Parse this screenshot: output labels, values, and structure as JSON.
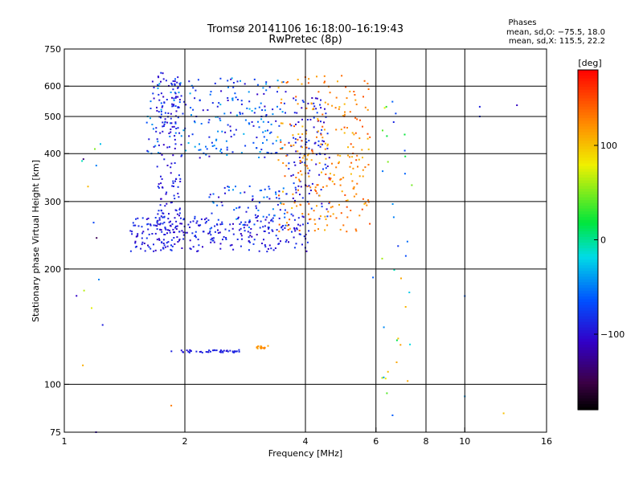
{
  "header": {
    "title": "Tromsø 20141106 16:18:00–16:19:43",
    "subtitle": "RwPretec (8p)"
  },
  "info": {
    "heading": "Phases",
    "line1": "mean, sd,O: −75.5, 18.0",
    "line2": "mean, sd,X: 115.5, 22.2"
  },
  "colorbar": {
    "label": "[deg]",
    "range": [
      -180,
      180
    ],
    "ticks": [
      {
        "value": 100,
        "label": "100"
      },
      {
        "value": 0,
        "label": "0"
      },
      {
        "value": -100,
        "label": "−100"
      }
    ]
  },
  "chart_data": {
    "type": "scatter",
    "xlabel": "Frequency [MHz]",
    "ylabel": "Stationary phase Virtual Height [km]",
    "xscale": "log",
    "yscale": "log",
    "xlim": [
      1,
      16
    ],
    "ylim": [
      75,
      750
    ],
    "xticks": [
      {
        "value": 1,
        "label": "1"
      },
      {
        "value": 2,
        "label": "2"
      },
      {
        "value": 4,
        "label": "4"
      },
      {
        "value": 6,
        "label": "6"
      },
      {
        "value": 8,
        "label": "8"
      },
      {
        "value": 10,
        "label": "10"
      },
      {
        "value": 16,
        "label": "16"
      }
    ],
    "yticks": [
      {
        "value": 75,
        "label": "75"
      },
      {
        "value": 100,
        "label": "100"
      },
      {
        "value": 200,
        "label": "200"
      },
      {
        "value": 300,
        "label": "300"
      },
      {
        "value": 400,
        "label": "400"
      },
      {
        "value": 500,
        "label": "500"
      },
      {
        "value": 600,
        "label": "600"
      },
      {
        "value": 750,
        "label": "750"
      }
    ],
    "vgrid": [
      2,
      4,
      6,
      8,
      10
    ],
    "hgrid": [
      100,
      200,
      300,
      400,
      500,
      600
    ],
    "grid": true,
    "color_encoding": "phase [deg]",
    "clusters": [
      {
        "name": "O-trace F-layer",
        "x": [
          1.45,
          4.1
        ],
        "y": [
          222,
          275
        ],
        "phase": [
          -115,
          -75
        ],
        "count": 260
      },
      {
        "name": "O-trace cusp",
        "x": [
          3.6,
          4.6
        ],
        "y": [
          270,
          560
        ],
        "phase": [
          -115,
          -70
        ],
        "count": 120
      },
      {
        "name": "X-trace F-layer",
        "x": [
          3.4,
          5.8
        ],
        "y": [
          250,
          640
        ],
        "phase": [
          100,
          150
        ],
        "count": 260
      },
      {
        "name": "Spread-F upper",
        "x": [
          1.6,
          3.6
        ],
        "y": [
          390,
          640
        ],
        "phase": [
          -110,
          -30
        ],
        "count": 240
      },
      {
        "name": "Vertical streak 1.8 MHz",
        "x": [
          1.7,
          1.95
        ],
        "y": [
          230,
          650
        ],
        "phase": [
          -110,
          -80
        ],
        "count": 160
      },
      {
        "name": "Mid spread 2.3–3.6 MHz",
        "x": [
          2.3,
          3.6
        ],
        "y": [
          250,
          330
        ],
        "phase": [
          -110,
          -40
        ],
        "count": 90
      },
      {
        "name": "E-layer echo O",
        "x": [
          1.85,
          2.75
        ],
        "y": [
          121,
          123
        ],
        "phase": [
          -100,
          -85
        ],
        "count": 45
      },
      {
        "name": "E-layer echo X",
        "x": [
          3.0,
          3.25
        ],
        "y": [
          124,
          126
        ],
        "phase": [
          110,
          130
        ],
        "count": 15
      },
      {
        "name": "Scattered high-frequency",
        "x": [
          6.2,
          7.4
        ],
        "y": [
          80,
          560
        ],
        "phase": [
          -90,
          120
        ],
        "count": 35
      },
      {
        "name": "Scattered low-frequency",
        "x": [
          1.05,
          1.25
        ],
        "y": [
          110,
          460
        ],
        "phase": [
          -150,
          140
        ],
        "count": 14
      }
    ],
    "isolated_points": [
      {
        "x": 10.9,
        "y": 530,
        "phase": -90
      },
      {
        "x": 10.9,
        "y": 500,
        "phase": -80
      },
      {
        "x": 13.5,
        "y": 535,
        "phase": -110
      },
      {
        "x": 10.0,
        "y": 170,
        "phase": -60
      },
      {
        "x": 10.0,
        "y": 93,
        "phase": -40
      },
      {
        "x": 12.5,
        "y": 84,
        "phase": 100
      },
      {
        "x": 1.85,
        "y": 88,
        "phase": 130
      },
      {
        "x": 1.2,
        "y": 75,
        "phase": -110
      },
      {
        "x": 5.9,
        "y": 190,
        "phase": -60
      },
      {
        "x": 6.6,
        "y": 83,
        "phase": -60
      },
      {
        "x": 7.2,
        "y": 102,
        "phase": 110
      }
    ]
  }
}
